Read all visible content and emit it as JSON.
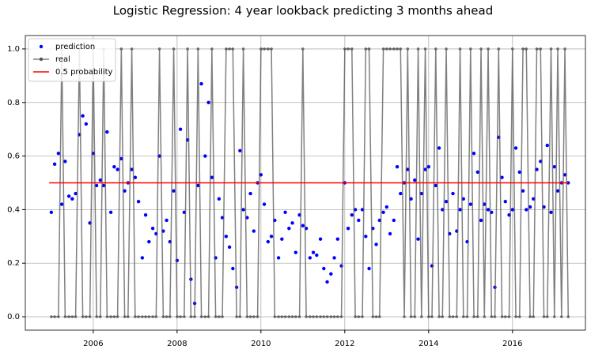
{
  "chart_data": {
    "type": "line",
    "title": "Logistic Regression: 4 year lookback predicting 3 months ahead",
    "x": [
      2005.0,
      2005.08,
      2005.17,
      2005.25,
      2005.33,
      2005.42,
      2005.5,
      2005.58,
      2005.67,
      2005.75,
      2005.83,
      2005.92,
      2006.0,
      2006.08,
      2006.17,
      2006.25,
      2006.33,
      2006.42,
      2006.5,
      2006.58,
      2006.67,
      2006.75,
      2006.83,
      2006.92,
      2007.0,
      2007.08,
      2007.17,
      2007.25,
      2007.33,
      2007.42,
      2007.5,
      2007.58,
      2007.67,
      2007.75,
      2007.83,
      2007.92,
      2008.0,
      2008.08,
      2008.17,
      2008.25,
      2008.33,
      2008.42,
      2008.5,
      2008.58,
      2008.67,
      2008.75,
      2008.83,
      2008.92,
      2009.0,
      2009.08,
      2009.17,
      2009.25,
      2009.33,
      2009.42,
      2009.5,
      2009.58,
      2009.67,
      2009.75,
      2009.83,
      2009.92,
      2010.0,
      2010.08,
      2010.17,
      2010.25,
      2010.33,
      2010.42,
      2010.5,
      2010.58,
      2010.67,
      2010.75,
      2010.83,
      2010.92,
      2011.0,
      2011.08,
      2011.17,
      2011.25,
      2011.33,
      2011.42,
      2011.5,
      2011.58,
      2011.67,
      2011.75,
      2011.83,
      2011.92,
      2012.0,
      2012.08,
      2012.17,
      2012.25,
      2012.33,
      2012.42,
      2012.5,
      2012.58,
      2012.67,
      2012.75,
      2012.83,
      2012.92,
      2013.0,
      2013.08,
      2013.17,
      2013.25,
      2013.33,
      2013.42,
      2013.5,
      2013.58,
      2013.67,
      2013.75,
      2013.83,
      2013.92,
      2014.0,
      2014.08,
      2014.17,
      2014.25,
      2014.33,
      2014.42,
      2014.5,
      2014.58,
      2014.67,
      2014.75,
      2014.83,
      2014.92,
      2015.0,
      2015.08,
      2015.17,
      2015.25,
      2015.33,
      2015.42,
      2015.5,
      2015.58,
      2015.67,
      2015.75,
      2015.83,
      2015.92,
      2016.0,
      2016.08,
      2016.17,
      2016.25,
      2016.33,
      2016.42,
      2016.5,
      2016.58,
      2016.67,
      2016.75,
      2016.83,
      2016.92,
      2017.0,
      2017.08,
      2017.17,
      2017.25,
      2017.33
    ],
    "series": [
      {
        "name": "prediction",
        "color": "#0000ff",
        "style": "markers",
        "values": [
          0.39,
          0.57,
          0.61,
          0.42,
          0.58,
          0.45,
          0.44,
          0.46,
          0.68,
          0.75,
          0.72,
          0.35,
          0.61,
          0.49,
          0.51,
          0.49,
          0.69,
          0.39,
          0.56,
          0.55,
          0.59,
          0.47,
          0.5,
          0.55,
          0.52,
          0.43,
          0.22,
          0.38,
          0.28,
          0.33,
          0.31,
          0.6,
          0.32,
          0.36,
          0.28,
          0.47,
          0.21,
          0.7,
          0.39,
          0.66,
          0.14,
          0.05,
          0.49,
          0.87,
          0.6,
          0.8,
          0.52,
          0.22,
          0.44,
          0.37,
          0.3,
          0.26,
          0.18,
          0.11,
          0.62,
          0.4,
          0.37,
          0.46,
          0.32,
          0.5,
          0.53,
          0.42,
          0.28,
          0.3,
          0.36,
          0.22,
          0.29,
          0.39,
          0.33,
          0.35,
          0.24,
          0.38,
          0.34,
          0.33,
          0.22,
          0.24,
          0.23,
          0.29,
          0.18,
          0.13,
          0.16,
          0.22,
          0.29,
          0.19,
          0.5,
          0.33,
          0.38,
          0.4,
          0.36,
          0.4,
          0.3,
          0.18,
          0.33,
          0.27,
          0.36,
          0.39,
          0.41,
          0.31,
          0.36,
          0.56,
          0.46,
          0.5,
          0.55,
          0.44,
          0.51,
          0.29,
          0.46,
          0.55,
          0.56,
          0.19,
          0.49,
          0.63,
          0.4,
          0.43,
          0.31,
          0.46,
          0.32,
          0.4,
          0.44,
          0.28,
          0.42,
          0.61,
          0.54,
          0.36,
          0.42,
          0.4,
          0.39,
          0.11,
          0.67,
          0.52,
          0.43,
          0.38,
          0.4,
          0.63,
          0.54,
          0.47,
          0.4,
          0.41,
          0.44,
          0.55,
          0.58,
          0.41,
          0.64,
          0.39,
          0.56,
          0.47,
          0.5,
          0.53,
          0.5
        ]
      },
      {
        "name": "real",
        "color": "#555555",
        "style": "line-markers",
        "values": [
          0,
          0,
          0,
          1,
          0,
          0,
          0,
          0,
          1,
          0,
          0,
          0,
          1,
          0,
          0,
          1,
          0,
          0,
          0,
          0,
          1,
          0,
          0,
          1,
          0,
          0,
          0,
          0,
          0,
          0,
          0,
          1,
          0,
          0,
          0,
          1,
          0,
          0,
          0,
          1,
          0,
          0,
          1,
          0,
          0,
          0,
          1,
          0,
          0,
          0,
          1,
          1,
          1,
          0,
          0,
          1,
          0,
          0,
          0,
          0,
          1,
          1,
          1,
          1,
          0,
          0,
          0,
          0,
          0,
          0,
          0,
          0,
          1,
          0,
          0,
          0,
          0,
          0,
          0,
          0,
          0,
          0,
          0,
          0,
          1,
          1,
          1,
          0,
          0,
          0,
          1,
          1,
          0,
          0,
          0,
          1,
          1,
          1,
          1,
          1,
          1,
          0,
          1,
          0,
          0,
          1,
          0,
          1,
          0,
          0,
          1,
          0,
          0,
          1,
          0,
          0,
          0,
          1,
          0,
          0,
          1,
          0,
          0,
          1,
          0,
          1,
          0,
          0,
          1,
          0,
          0,
          0,
          1,
          0,
          0,
          1,
          1,
          0,
          0,
          1,
          1,
          0,
          0,
          1,
          0,
          1,
          0,
          1,
          0
        ]
      },
      {
        "name": "0.5 probability",
        "color": "#ff0000",
        "style": "line",
        "x": [
          2004.95,
          2017.33
        ],
        "values": [
          0.5,
          0.5
        ]
      }
    ],
    "xlim": [
      2004.38,
      2017.74
    ],
    "xticks": [
      2006,
      2008,
      2010,
      2012,
      2014,
      2016
    ],
    "ylim": [
      -0.05,
      1.05
    ],
    "yticks": [
      {
        "value": 0,
        "label": "0.0"
      },
      0.2,
      0.4,
      0.6,
      0.8,
      {
        "value": 1,
        "label": "1.0"
      }
    ],
    "grid": true,
    "legend": "upper-left"
  }
}
